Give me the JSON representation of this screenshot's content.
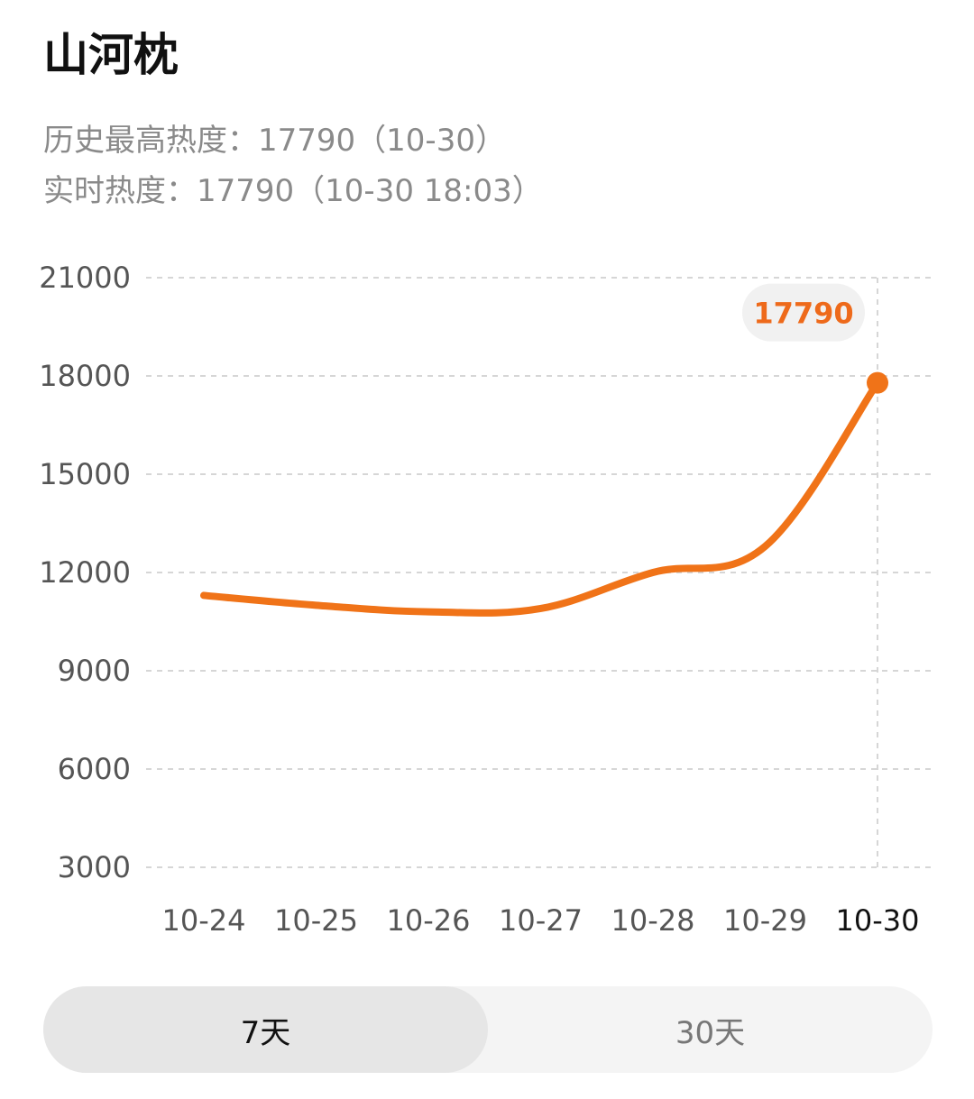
{
  "title": "山河枕",
  "stats": {
    "peak_text": "历史最高热度：17790（10-30）",
    "realtime_text": "实时热度：17790（10-30 18:03）"
  },
  "range_tabs": [
    {
      "label": "7天",
      "selected": true
    },
    {
      "label": "30天",
      "selected": false
    }
  ],
  "colors": {
    "accent": "#f07318",
    "grid": "#d6d6d6",
    "bubble": "#f1f1f1"
  },
  "chart_data": {
    "type": "line",
    "x": [
      "10-24",
      "10-25",
      "10-26",
      "10-27",
      "10-28",
      "10-29",
      "10-30"
    ],
    "series": [
      {
        "values": [
          11300,
          11000,
          10800,
          10900,
          12000,
          12800,
          17790
        ]
      }
    ],
    "yticks": [
      "21000",
      "18000",
      "15000",
      "12000",
      "9000",
      "6000",
      "3000"
    ],
    "ylim": [
      3000,
      21000
    ],
    "highlight": {
      "x": "10-30",
      "value": 17790,
      "label": "17790"
    },
    "grid": true
  }
}
